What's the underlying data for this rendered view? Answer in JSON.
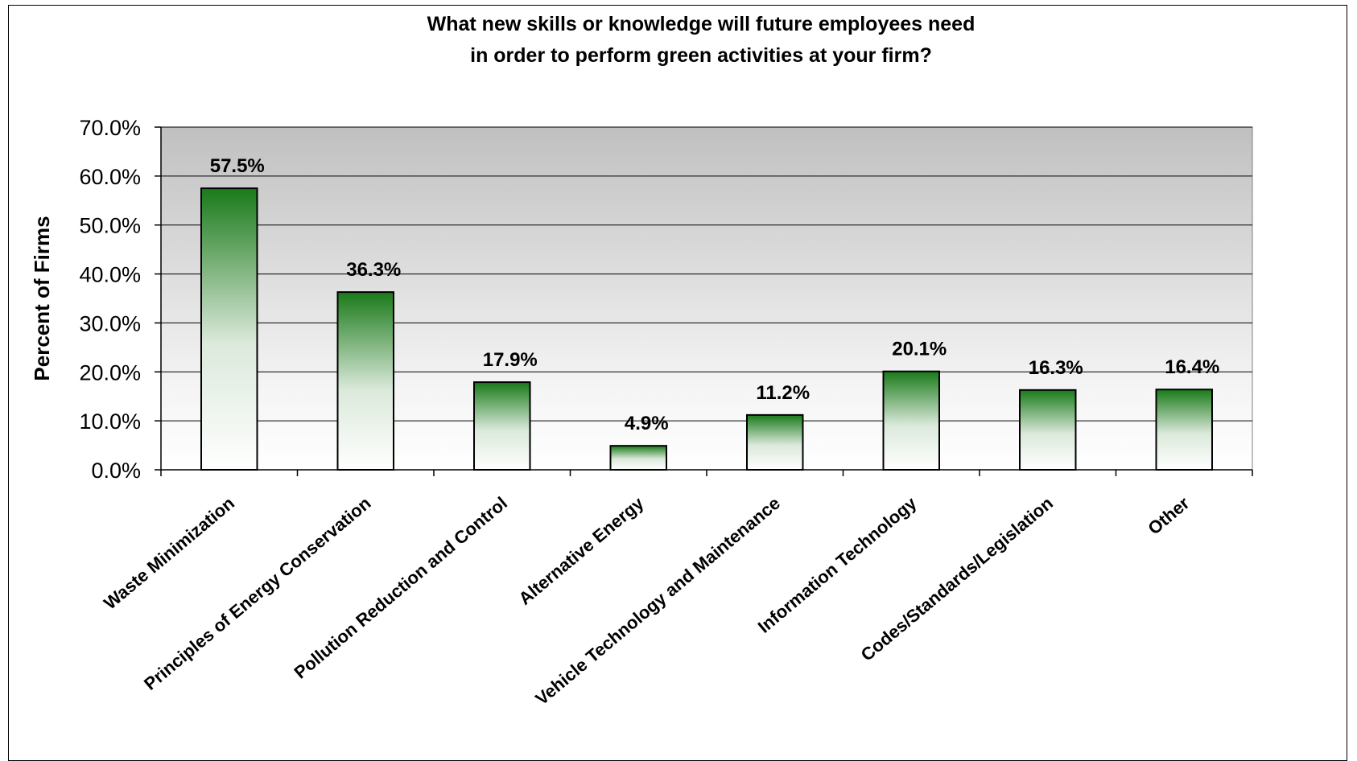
{
  "chart_data": {
    "type": "bar",
    "title_lines": [
      "What new skills or knowledge will future employees need",
      "in order to perform green activities at your firm?"
    ],
    "ylabel": "Percent of Firms",
    "xlabel": "",
    "ylim": [
      0,
      70
    ],
    "y_ticks": [
      0,
      10,
      20,
      30,
      40,
      50,
      60,
      70
    ],
    "y_tick_labels": [
      "0.0%",
      "10.0%",
      "20.0%",
      "30.0%",
      "40.0%",
      "50.0%",
      "60.0%",
      "70.0%"
    ],
    "grid": true,
    "categories": [
      "Waste Minimization",
      "Principles of Energy Conservation",
      "Pollution Reduction and Control",
      "Alternative Energy",
      "Vehicle Technology and Maintenance",
      "Information Technology",
      "Codes/Standards/Legislation",
      "Other"
    ],
    "values": [
      57.5,
      36.3,
      17.9,
      4.9,
      11.2,
      20.1,
      16.3,
      16.4
    ],
    "data_labels": [
      "57.5%",
      "36.3%",
      "17.9%",
      "4.9%",
      "11.2%",
      "20.1%",
      "16.3%",
      "16.4%"
    ],
    "colors": {
      "bar_top": "#1a7a1a",
      "bar_bottom": "#ffffff",
      "plot_top": "#c0c0c0",
      "plot_bottom": "#ffffff"
    }
  }
}
